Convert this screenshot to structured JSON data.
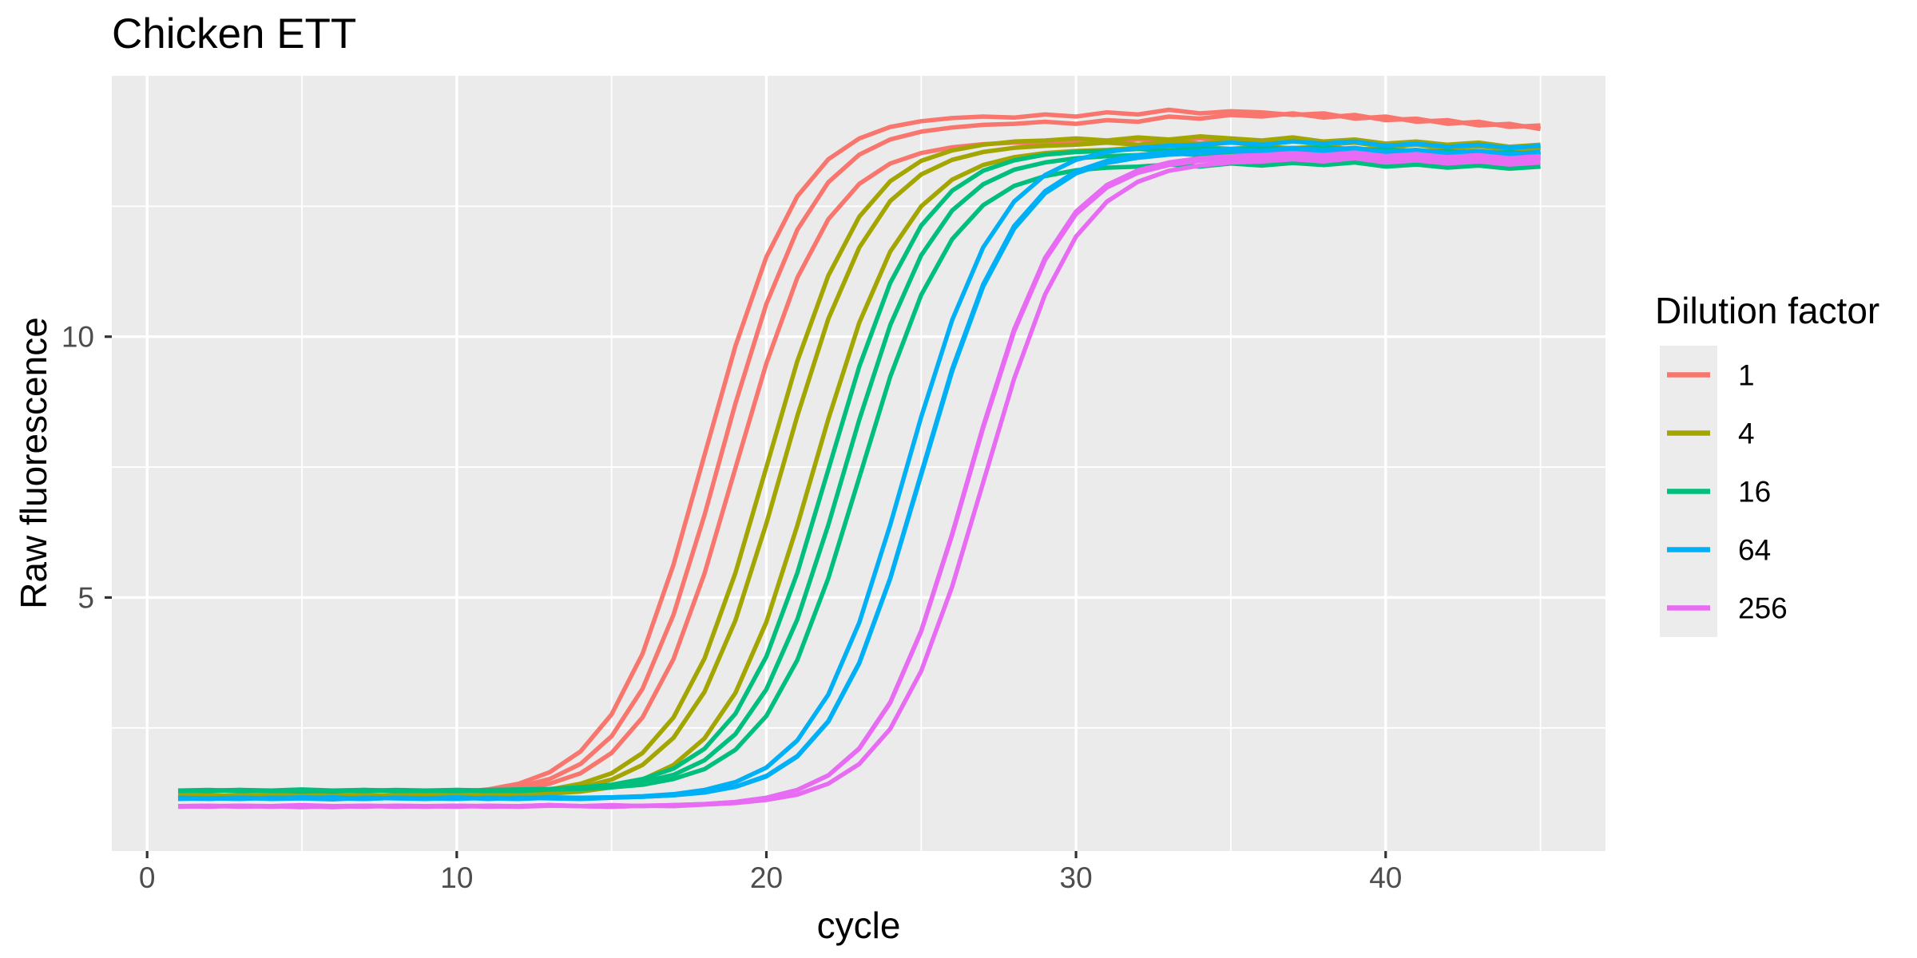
{
  "title": "Chicken ETT",
  "style": {
    "panel_bg": "#EBEBEB",
    "grid_color": "#FFFFFF",
    "tick_mark_color": "#333333",
    "tick_label_color": "#4D4D4D",
    "text_color": "#000000",
    "legend_key_bg": "#ECECEC",
    "background": "#FFFFFF"
  },
  "chart_data": {
    "type": "line",
    "title": "Chicken ETT",
    "xlabel": "cycle",
    "ylabel": "Raw fluorescence",
    "grid": true,
    "legend": {
      "title": "Dilution factor",
      "position": "right",
      "entries": [
        {
          "label": "1",
          "color": "#F8766D"
        },
        {
          "label": "4",
          "color": "#A3A500"
        },
        {
          "label": "16",
          "color": "#00BF7D"
        },
        {
          "label": "64",
          "color": "#00B0F6"
        },
        {
          "label": "256",
          "color": "#E76BF3"
        }
      ]
    },
    "x_axis": {
      "range_shown": [
        -1.14,
        47.1
      ],
      "ticks_major": [
        0,
        10,
        20,
        30,
        40
      ],
      "ticks_minor": [
        5,
        15,
        25,
        35,
        45
      ],
      "tick_labels": [
        "0",
        "10",
        "20",
        "30",
        "40"
      ]
    },
    "y_axis": {
      "range_shown": [
        0.14,
        15.0
      ],
      "ticks_major": [
        5,
        10
      ],
      "ticks_minor": [
        2.5,
        7.5,
        12.5
      ],
      "tick_labels": [
        "5",
        "10"
      ]
    },
    "x": [
      1,
      2,
      3,
      4,
      5,
      6,
      7,
      8,
      9,
      10,
      11,
      12,
      13,
      14,
      15,
      16,
      17,
      18,
      19,
      20,
      21,
      22,
      23,
      24,
      25,
      26,
      27,
      28,
      29,
      30,
      31,
      32,
      33,
      34,
      35,
      36,
      37,
      38,
      39,
      40,
      41,
      42,
      43,
      44,
      45
    ],
    "series": [
      {
        "name": "dilution 1 rep 1",
        "dilution_factor": "1",
        "color": "#F8766D",
        "y": [
          1.22,
          1.2,
          1.19,
          1.21,
          1.2,
          1.18,
          1.2,
          1.21,
          1.23,
          1.26,
          1.32,
          1.43,
          1.65,
          2.05,
          2.76,
          3.92,
          5.63,
          7.73,
          9.82,
          11.53,
          12.69,
          13.4,
          13.8,
          14.02,
          14.13,
          14.19,
          14.22,
          14.2,
          14.26,
          14.22,
          14.3,
          14.26,
          14.35,
          14.28,
          14.32,
          14.3,
          14.25,
          14.28,
          14.18,
          14.22,
          14.12,
          14.15,
          14.05,
          14.08,
          13.98
        ]
      },
      {
        "name": "dilution 1 rep 2",
        "dilution_factor": "1",
        "color": "#F8766D",
        "y": [
          1.19,
          1.21,
          1.2,
          1.18,
          1.21,
          1.19,
          1.22,
          1.2,
          1.22,
          1.24,
          1.29,
          1.37,
          1.52,
          1.81,
          2.34,
          3.25,
          4.67,
          6.58,
          8.72,
          10.63,
          12.05,
          12.96,
          13.49,
          13.78,
          13.93,
          14.01,
          14.06,
          14.08,
          14.12,
          14.08,
          14.15,
          14.12,
          14.22,
          14.18,
          14.25,
          14.22,
          14.28,
          14.2,
          14.25,
          14.15,
          14.18,
          14.08,
          14.12,
          14.02,
          14.05
        ]
      },
      {
        "name": "dilution 1 rep 3",
        "dilution_factor": "1",
        "color": "#F8766D",
        "y": [
          1.21,
          1.19,
          1.2,
          1.22,
          1.19,
          1.21,
          1.2,
          1.19,
          1.21,
          1.23,
          1.26,
          1.32,
          1.43,
          1.63,
          2.02,
          2.7,
          3.82,
          5.46,
          7.48,
          9.49,
          11.13,
          12.25,
          12.93,
          13.32,
          13.52,
          13.63,
          13.69,
          13.72,
          13.7,
          13.75,
          13.72,
          13.78,
          13.75,
          13.8,
          13.76,
          13.72,
          13.78,
          13.7,
          13.74,
          13.66,
          13.7,
          13.62,
          13.66,
          13.58,
          13.62
        ]
      },
      {
        "name": "dilution 4 rep 1",
        "dilution_factor": "4",
        "color": "#A3A500",
        "y": [
          1.2,
          1.21,
          1.19,
          1.2,
          1.22,
          1.2,
          1.19,
          1.21,
          1.2,
          1.22,
          1.23,
          1.26,
          1.32,
          1.43,
          1.63,
          2.02,
          2.7,
          3.83,
          5.47,
          7.5,
          9.53,
          11.17,
          12.3,
          12.98,
          13.37,
          13.57,
          13.68,
          13.74,
          13.76,
          13.8,
          13.76,
          13.82,
          13.78,
          13.84,
          13.8,
          13.76,
          13.82,
          13.74,
          13.78,
          13.7,
          13.74,
          13.68,
          13.72,
          13.64,
          13.68
        ]
      },
      {
        "name": "dilution 4 rep 2",
        "dilution_factor": "4",
        "color": "#A3A500",
        "y": [
          1.19,
          1.2,
          1.21,
          1.19,
          1.2,
          1.18,
          1.21,
          1.2,
          1.19,
          1.21,
          1.22,
          1.24,
          1.28,
          1.36,
          1.51,
          1.79,
          2.31,
          3.19,
          4.56,
          6.42,
          8.48,
          10.34,
          11.71,
          12.6,
          13.11,
          13.39,
          13.54,
          13.62,
          13.66,
          13.68,
          13.72,
          13.68,
          13.74,
          13.7,
          13.75,
          13.71,
          13.76,
          13.68,
          13.72,
          13.64,
          13.68,
          13.6,
          13.65,
          13.58,
          13.62
        ]
      },
      {
        "name": "dilution 4 rep 3",
        "dilution_factor": "4",
        "color": "#A3A500",
        "y": [
          1.2,
          1.19,
          1.21,
          1.2,
          1.18,
          1.2,
          1.21,
          1.19,
          1.2,
          1.21,
          1.2,
          1.22,
          1.24,
          1.28,
          1.36,
          1.51,
          1.79,
          2.3,
          3.17,
          4.53,
          6.38,
          8.42,
          10.27,
          11.63,
          12.5,
          13.01,
          13.29,
          13.44,
          13.52,
          13.56,
          13.58,
          13.62,
          13.58,
          13.64,
          13.6,
          13.65,
          13.61,
          13.66,
          13.58,
          13.62,
          13.55,
          13.58,
          13.52,
          13.56,
          13.5
        ]
      },
      {
        "name": "dilution 16 rep 1",
        "dilution_factor": "16",
        "color": "#00BF7D",
        "y": [
          1.3,
          1.31,
          1.29,
          1.3,
          1.32,
          1.3,
          1.29,
          1.31,
          1.3,
          1.29,
          1.31,
          1.32,
          1.33,
          1.36,
          1.41,
          1.52,
          1.72,
          2.1,
          2.77,
          3.87,
          5.47,
          7.45,
          9.43,
          11.03,
          12.13,
          12.8,
          13.18,
          13.38,
          13.49,
          13.54,
          13.56,
          13.6,
          13.56,
          13.62,
          13.58,
          13.63,
          13.59,
          13.64,
          13.56,
          13.6,
          13.52,
          13.56,
          13.5,
          13.54,
          13.48
        ]
      },
      {
        "name": "dilution 16 rep 2",
        "dilution_factor": "16",
        "color": "#00BF7D",
        "y": [
          1.29,
          1.3,
          1.31,
          1.29,
          1.3,
          1.28,
          1.31,
          1.3,
          1.29,
          1.31,
          1.3,
          1.29,
          1.32,
          1.34,
          1.38,
          1.46,
          1.6,
          1.88,
          2.38,
          3.24,
          4.58,
          6.39,
          8.41,
          10.22,
          11.56,
          12.42,
          12.92,
          13.2,
          13.34,
          13.42,
          13.46,
          13.48,
          13.52,
          13.48,
          13.54,
          13.5,
          13.55,
          13.47,
          13.52,
          13.44,
          13.48,
          13.42,
          13.46,
          13.4,
          13.44
        ]
      },
      {
        "name": "dilution 16 rep 3",
        "dilution_factor": "16",
        "color": "#00BF7D",
        "y": [
          1.3,
          1.29,
          1.31,
          1.3,
          1.28,
          1.3,
          1.31,
          1.29,
          1.3,
          1.31,
          1.29,
          1.3,
          1.32,
          1.33,
          1.36,
          1.41,
          1.52,
          1.71,
          2.08,
          2.73,
          3.8,
          5.37,
          7.3,
          9.23,
          10.8,
          11.87,
          12.52,
          12.89,
          13.08,
          13.19,
          13.24,
          13.26,
          13.3,
          13.26,
          13.32,
          13.28,
          13.33,
          13.29,
          13.34,
          13.26,
          13.3,
          13.24,
          13.28,
          13.22,
          13.26
        ]
      },
      {
        "name": "dilution 64 rep 1",
        "dilution_factor": "64",
        "color": "#00B0F6",
        "y": [
          1.15,
          1.14,
          1.16,
          1.15,
          1.17,
          1.15,
          1.14,
          1.16,
          1.15,
          1.14,
          1.16,
          1.15,
          1.17,
          1.16,
          1.17,
          1.19,
          1.23,
          1.31,
          1.46,
          1.74,
          2.26,
          3.14,
          4.52,
          6.39,
          8.46,
          10.32,
          11.71,
          12.59,
          13.1,
          13.39,
          13.54,
          13.62,
          13.66,
          13.68,
          13.72,
          13.68,
          13.74,
          13.7,
          13.74,
          13.66,
          13.7,
          13.64,
          13.68,
          13.62,
          13.66
        ]
      },
      {
        "name": "dilution 64 rep 2",
        "dilution_factor": "64",
        "color": "#00B0F6",
        "y": [
          1.14,
          1.15,
          1.16,
          1.14,
          1.15,
          1.13,
          1.16,
          1.15,
          1.14,
          1.16,
          1.15,
          1.14,
          1.16,
          1.15,
          1.17,
          1.18,
          1.21,
          1.27,
          1.37,
          1.58,
          1.96,
          2.63,
          3.75,
          5.37,
          7.38,
          9.38,
          11.0,
          12.12,
          12.79,
          13.17,
          13.37,
          13.48,
          13.54,
          13.56,
          13.6,
          13.56,
          13.62,
          13.58,
          13.62,
          13.54,
          13.58,
          13.52,
          13.56,
          13.5,
          13.54
        ]
      },
      {
        "name": "dilution 64 rep 3",
        "dilution_factor": "64",
        "color": "#00B0F6",
        "y": [
          1.16,
          1.15,
          1.14,
          1.16,
          1.15,
          1.17,
          1.14,
          1.16,
          1.15,
          1.17,
          1.14,
          1.16,
          1.15,
          1.14,
          1.16,
          1.18,
          1.21,
          1.26,
          1.37,
          1.57,
          1.95,
          2.62,
          3.74,
          5.36,
          7.35,
          9.34,
          10.96,
          12.07,
          12.75,
          13.13,
          13.33,
          13.43,
          13.49,
          13.52,
          13.56,
          13.52,
          13.58,
          13.54,
          13.58,
          13.5,
          13.54,
          13.48,
          13.52,
          13.46,
          13.5
        ]
      },
      {
        "name": "dilution 256 rep 1",
        "dilution_factor": "256",
        "color": "#E76BF3",
        "y": [
          1.0,
          1.01,
          0.99,
          1.0,
          1.02,
          1.0,
          0.99,
          1.01,
          1.0,
          0.99,
          1.01,
          1.0,
          1.02,
          1.0,
          0.99,
          1.01,
          1.02,
          1.04,
          1.08,
          1.16,
          1.31,
          1.59,
          2.11,
          2.99,
          4.36,
          6.22,
          8.28,
          10.14,
          11.51,
          12.4,
          12.91,
          13.19,
          13.34,
          13.42,
          13.46,
          13.48,
          13.52,
          13.48,
          13.53,
          13.46,
          13.5,
          13.44,
          13.48,
          13.42,
          13.46
        ]
      },
      {
        "name": "dilution 256 rep 2",
        "dilution_factor": "256",
        "color": "#E76BF3",
        "y": [
          0.99,
          1.0,
          1.01,
          0.99,
          1.0,
          0.98,
          1.01,
          1.0,
          0.99,
          1.01,
          1.0,
          0.99,
          1.01,
          1.0,
          1.02,
          1.0,
          1.02,
          1.04,
          1.08,
          1.16,
          1.31,
          1.59,
          2.1,
          2.98,
          4.35,
          6.2,
          8.25,
          10.1,
          11.47,
          12.35,
          12.86,
          13.14,
          13.29,
          13.37,
          13.41,
          13.43,
          13.47,
          13.43,
          13.48,
          13.41,
          13.45,
          13.39,
          13.43,
          13.37,
          13.41
        ]
      },
      {
        "name": "dilution 256 rep 3",
        "dilution_factor": "256",
        "color": "#E76BF3",
        "y": [
          1.0,
          0.99,
          1.01,
          1.0,
          0.98,
          1.0,
          1.01,
          0.99,
          1.0,
          1.01,
          0.99,
          1.0,
          1.02,
          1.0,
          0.99,
          1.01,
          1.0,
          1.03,
          1.06,
          1.12,
          1.22,
          1.43,
          1.81,
          2.48,
          3.59,
          5.21,
          7.2,
          9.19,
          10.81,
          11.92,
          12.59,
          12.97,
          13.18,
          13.28,
          13.34,
          13.36,
          13.4,
          13.36,
          13.42,
          13.34,
          13.38,
          13.32,
          13.36,
          13.3,
          13.34
        ]
      }
    ]
  }
}
